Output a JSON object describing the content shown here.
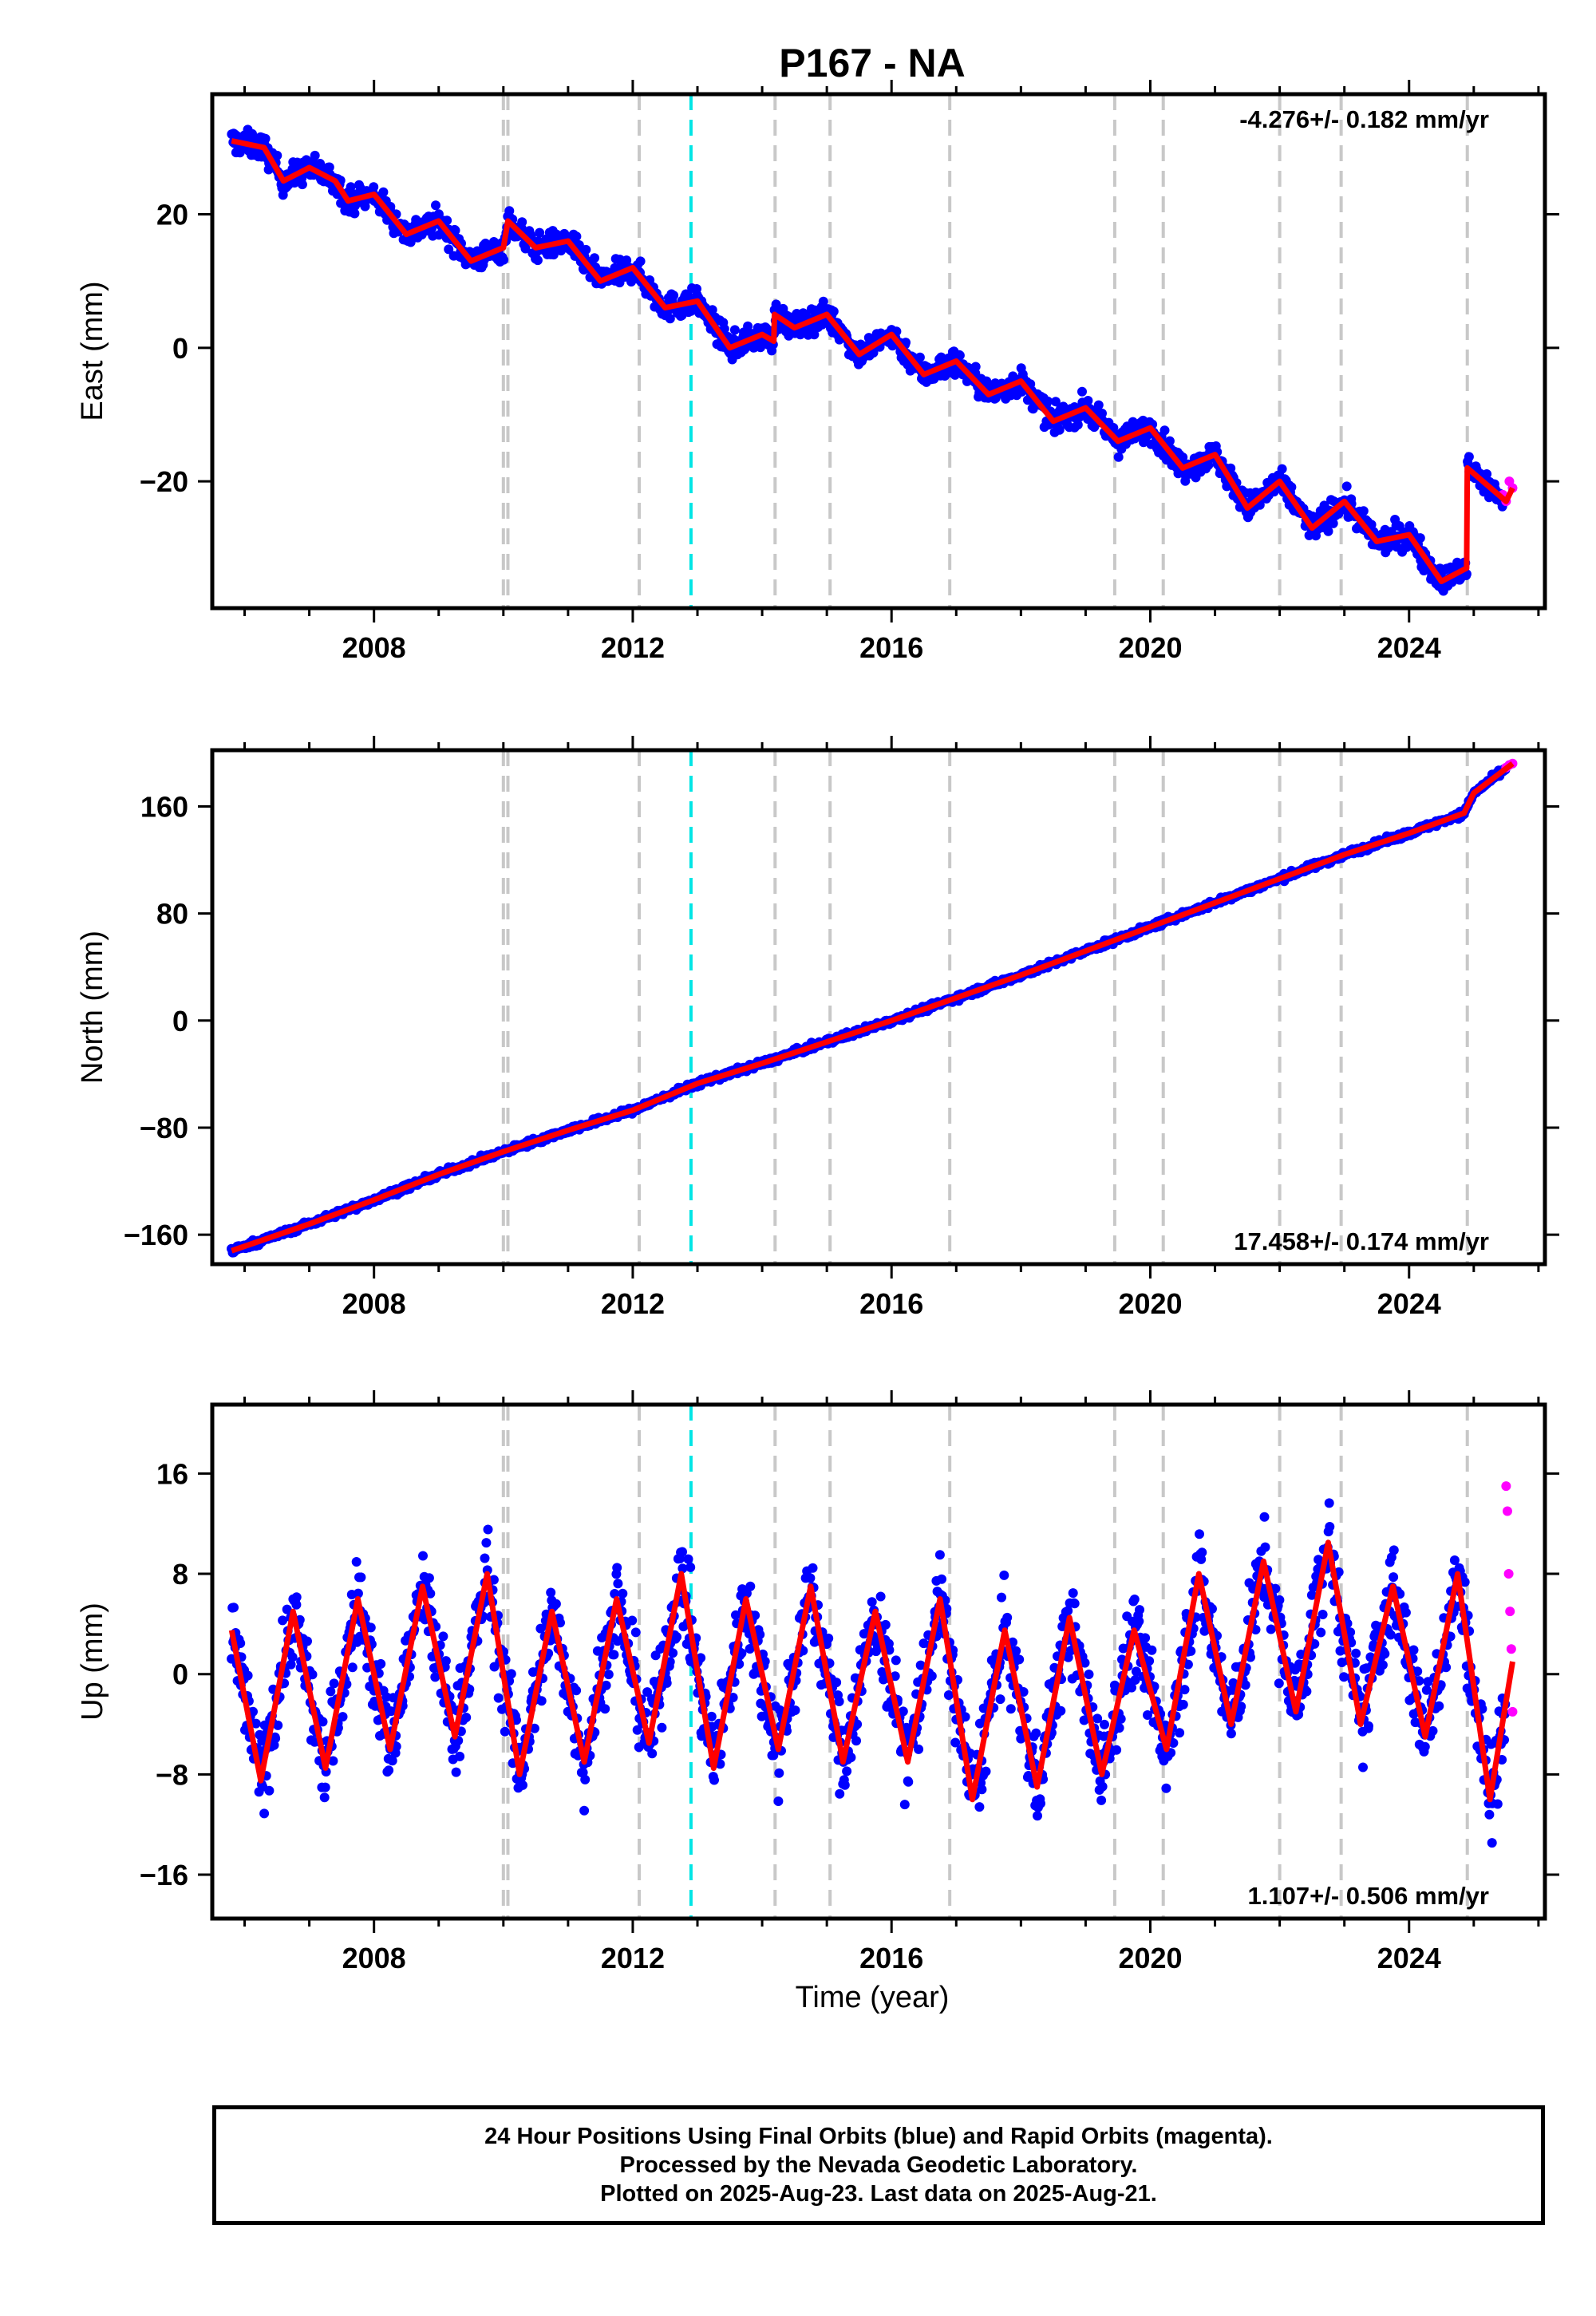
{
  "figure": {
    "title": "P167 - NA",
    "xlabel": "Time (year)"
  },
  "colors": {
    "final_orbits": "#0000ff",
    "rapid_orbits": "#ff00ff",
    "model_fit": "#ff0000",
    "equipment_change": "#c8c8c8",
    "earthquake": "#00e5e5"
  },
  "chart_data": [
    {
      "type": "scatter",
      "ylabel": "East (mm)",
      "rate_label": "-4.276+/- 0.182 mm/yr",
      "rate_position": "top-right",
      "xlim": [
        2005.5,
        2026.1
      ],
      "ylim": [
        -39,
        38
      ],
      "xticks": [
        2008,
        2012,
        2016,
        2020,
        2024
      ],
      "xtick_labels": [
        "2008",
        "2012",
        "2016",
        "2020",
        "2024"
      ],
      "yticks": [
        -20,
        0,
        20
      ],
      "ytick_labels": [
        "−20",
        "0",
        "20"
      ],
      "model": {
        "name": "model fit",
        "x": [
          2005.8,
          2006.3,
          2006.6,
          2007.0,
          2007.4,
          2007.6,
          2008.0,
          2008.5,
          2009.0,
          2009.5,
          2010.0,
          2010.07,
          2010.5,
          2011.0,
          2011.5,
          2012.0,
          2012.5,
          2013.0,
          2013.5,
          2014.0,
          2014.18,
          2014.19,
          2014.5,
          2015.0,
          2015.5,
          2016.0,
          2016.5,
          2017.0,
          2017.5,
          2018.0,
          2018.5,
          2019.0,
          2019.5,
          2020.0,
          2020.5,
          2021.0,
          2021.5,
          2022.0,
          2022.5,
          2023.0,
          2023.5,
          2024.0,
          2024.5,
          2024.89,
          2024.9,
          2025.5,
          2025.6
        ],
        "y": [
          31,
          30,
          25,
          27,
          25,
          22,
          23,
          17,
          19,
          13,
          15,
          19,
          15,
          16,
          10,
          12,
          6,
          7,
          0,
          2,
          1,
          5,
          3,
          5,
          -1,
          2,
          -4,
          -2,
          -7,
          -5,
          -11,
          -9,
          -14,
          -12,
          -18,
          -16,
          -24,
          -20,
          -27,
          -23,
          -29,
          -28,
          -35,
          -33,
          -18,
          -23,
          -21
        ]
      },
      "scatter_spread": 2.5,
      "rapid": {
        "x": [
          2025.45,
          2025.5,
          2025.55,
          2025.6
        ],
        "y": [
          -22,
          -23,
          -20,
          -21
        ]
      },
      "equipment_changes": [
        2010.0,
        2010.07,
        2012.1,
        2014.2,
        2015.05,
        2016.9,
        2019.45,
        2020.2,
        2022.0,
        2022.95,
        2024.9
      ],
      "earthquakes": [
        2012.9
      ]
    },
    {
      "type": "scatter",
      "ylabel": "North (mm)",
      "rate_label": "17.458+/- 0.174 mm/yr",
      "rate_position": "bottom-right",
      "xlim": [
        2005.5,
        2026.1
      ],
      "ylim": [
        -182,
        202
      ],
      "xticks": [
        2008,
        2012,
        2016,
        2020,
        2024
      ],
      "xtick_labels": [
        "2008",
        "2012",
        "2016",
        "2020",
        "2024"
      ],
      "yticks": [
        -160,
        -80,
        0,
        80,
        160
      ],
      "ytick_labels": [
        "−160",
        "−80",
        "0",
        "80",
        "160"
      ],
      "model": {
        "name": "model fit",
        "x": [
          2005.8,
          2007.0,
          2008.0,
          2009.0,
          2010.0,
          2011.0,
          2012.0,
          2013.0,
          2014.0,
          2015.0,
          2016.0,
          2017.0,
          2018.0,
          2019.0,
          2020.0,
          2021.0,
          2022.0,
          2023.0,
          2024.0,
          2024.85,
          2025.0,
          2025.6
        ],
        "y": [
          -172,
          -152,
          -134,
          -115,
          -98,
          -82,
          -67,
          -47,
          -32,
          -16,
          0,
          17,
          34,
          52,
          70,
          88,
          106,
          124,
          140,
          155,
          170,
          192
        ]
      },
      "scatter_spread": 3,
      "rapid": {
        "x": [
          2025.5,
          2025.55,
          2025.6
        ],
        "y": [
          189,
          191,
          192
        ]
      },
      "equipment_changes": [
        2010.0,
        2010.07,
        2012.1,
        2014.2,
        2015.05,
        2016.9,
        2019.45,
        2020.2,
        2022.0,
        2022.95,
        2024.9
      ],
      "earthquakes": [
        2012.9
      ]
    },
    {
      "type": "scatter",
      "ylabel": "Up (mm)",
      "rate_label": "1.107+/- 0.506 mm/yr",
      "rate_position": "bottom-right",
      "xlim": [
        2005.5,
        2026.1
      ],
      "ylim": [
        -19.5,
        21.5
      ],
      "xticks": [
        2008,
        2012,
        2016,
        2020,
        2024
      ],
      "xtick_labels": [
        "2008",
        "2012",
        "2016",
        "2020",
        "2024"
      ],
      "yticks": [
        -16,
        -8,
        0,
        8,
        16
      ],
      "ytick_labels": [
        "−16",
        "−8",
        "0",
        "8",
        "16"
      ],
      "model": {
        "name": "model fit",
        "x": [
          2005.8,
          2006.25,
          2006.75,
          2007.25,
          2007.75,
          2008.25,
          2008.75,
          2009.25,
          2009.75,
          2010.25,
          2010.75,
          2011.25,
          2011.75,
          2012.25,
          2012.75,
          2013.25,
          2013.75,
          2014.25,
          2014.75,
          2015.25,
          2015.75,
          2016.25,
          2016.75,
          2017.25,
          2017.75,
          2018.25,
          2018.75,
          2019.25,
          2019.75,
          2020.25,
          2020.75,
          2021.25,
          2021.75,
          2022.25,
          2022.75,
          2023.25,
          2023.75,
          2024.25,
          2024.75,
          2025.25,
          2025.6
        ],
        "y": [
          3.5,
          -8.5,
          5,
          -7.5,
          6,
          -6,
          7,
          -5,
          8,
          -8,
          5,
          -7,
          6,
          -5.5,
          8,
          -7.5,
          6,
          -6,
          7,
          -7,
          5,
          -7,
          6,
          -10,
          3.5,
          -9,
          4.5,
          -8,
          3.5,
          -6,
          8,
          -4,
          9,
          -3,
          10.5,
          -4,
          7,
          -5,
          8,
          -10,
          1
        ]
      },
      "scatter_spread": 4.5,
      "rapid": {
        "x": [
          2025.5,
          2025.52,
          2025.54,
          2025.56,
          2025.58,
          2025.6
        ],
        "y": [
          15,
          13,
          8,
          5,
          2,
          -3
        ]
      },
      "equipment_changes": [
        2010.0,
        2010.07,
        2012.1,
        2014.2,
        2015.05,
        2016.9,
        2019.45,
        2020.2,
        2022.0,
        2022.95,
        2024.9
      ],
      "earthquakes": [
        2012.9
      ]
    }
  ],
  "caption": {
    "line1": "24 Hour Positions Using Final Orbits (blue) and Rapid Orbits (magenta).",
    "line2": "Processed by the Nevada Geodetic Laboratory.",
    "line3": "Plotted on 2025-Aug-23. Last data on 2025-Aug-21."
  }
}
